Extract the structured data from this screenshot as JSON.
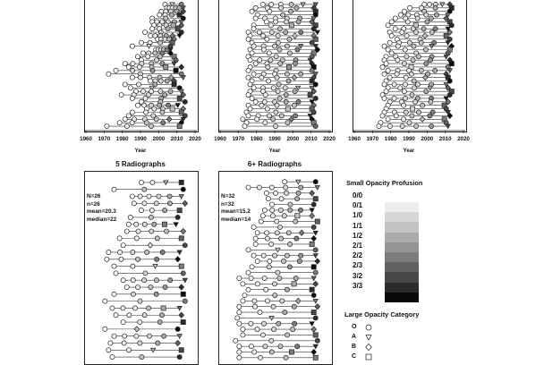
{
  "panels": [
    {
      "id": "p1",
      "title": "",
      "xlabel": "Year",
      "ticks": [
        "1960",
        "1970",
        "1980",
        "1990",
        "2000",
        "2010",
        "2020"
      ],
      "stats": [],
      "rows": 36
    },
    {
      "id": "p2",
      "title": "",
      "xlabel": "Year",
      "ticks": [
        "1960",
        "1970",
        "1980",
        "1990",
        "2000",
        "2010",
        "2020"
      ],
      "stats": [],
      "rows": 36
    },
    {
      "id": "p3",
      "title": "",
      "xlabel": "Year",
      "ticks": [
        "1960",
        "1970",
        "1980",
        "1990",
        "2000",
        "2010",
        "2020"
      ],
      "stats": [],
      "rows": 36
    },
    {
      "id": "p4",
      "title": "5 Radiographs",
      "xlabel": "",
      "ticks": [],
      "stats": [
        "N=26",
        "n=26",
        "mean=20.3",
        "median=22"
      ],
      "rows": 26
    },
    {
      "id": "p5",
      "title": "6+ Radiographs",
      "xlabel": "",
      "ticks": [],
      "stats": [
        "N=32",
        "n=32",
        "mean=15.2",
        "median=14"
      ],
      "rows": 32
    }
  ],
  "legend": {
    "profusion_title": "Small Opacity Profusion",
    "profusion_levels": [
      "0/0",
      "0/1",
      "1/0",
      "1/1",
      "1/2",
      "2/1",
      "2/2",
      "2/3",
      "3/2",
      "3/3"
    ],
    "profusion_colors": [
      "#ededed",
      "#d6d6d6",
      "#c2c2c2",
      "#ababab",
      "#959595",
      "#7c7c7c",
      "#626262",
      "#474747",
      "#2b2b2b",
      "#0a0a0a"
    ],
    "category_title": "Large Opacity Category",
    "categories": [
      {
        "label": "O",
        "shape": "circle"
      },
      {
        "label": "A",
        "shape": "triangle-down"
      },
      {
        "label": "B",
        "shape": "diamond"
      },
      {
        "label": "C",
        "shape": "square"
      }
    ]
  },
  "chart_data": [
    {
      "type": "scatter",
      "panel": "p1",
      "xlabel": "Year",
      "xlim": [
        1960,
        2020
      ],
      "note_rows": 36,
      "series": [
        {
          "start": [
            2003,
            2004,
            2001,
            2000,
            1996,
            1996,
            1997,
            1996,
            1992,
            1995,
            1999,
            1990,
            1985,
            1998,
            1991,
            1988,
            1990,
            1981,
            1983,
            1976,
            1972,
            1985,
            1995,
            1981,
            1984,
            1987,
            1979,
            1985,
            1990,
            1988,
            1993,
            1985,
            1983,
            1981,
            1978,
            1971
          ],
          "end": [
            2012,
            2013,
            2013,
            2011,
            2013,
            2012,
            2012,
            2010,
            2012,
            2011,
            2008,
            2007,
            2006,
            2006,
            2006,
            2008,
            2009,
            2008,
            2012,
            2009,
            2012,
            2013,
            2008,
            2008,
            2011,
            2012,
            2013,
            2011,
            2014,
            2010,
            2013,
            2012,
            2014,
            2013,
            2012,
            2011
          ]
        }
      ]
    },
    {
      "type": "scatter",
      "panel": "p2",
      "xlabel": "Year",
      "xlim": [
        1960,
        2020
      ],
      "note_rows": 36,
      "series": [
        {
          "start": [
            1983,
            1979,
            1977,
            1980,
            1979,
            1985,
            1978,
            1978,
            1975,
            1976,
            1975,
            1977,
            1978,
            1976,
            1977,
            1975,
            1976,
            1979,
            1976,
            1975,
            1978,
            1975,
            1977,
            1976,
            1978,
            1976,
            1975,
            1977,
            1979,
            1975,
            1976,
            1974,
            1975,
            1972,
            1974,
            1973
          ],
          "end": [
            2012,
            2011,
            2012,
            2012,
            2011,
            2010,
            2012,
            2011,
            2013,
            2011,
            2012,
            2010,
            2012,
            2013,
            2011,
            2010,
            2009,
            2010,
            2011,
            2010,
            2012,
            2011,
            2010,
            2012,
            2010,
            2011,
            2009,
            2012,
            2010,
            2011,
            2010,
            2011,
            2009,
            2010,
            2011,
            2012
          ]
        }
      ]
    },
    {
      "type": "scatter",
      "panel": "p3",
      "xlabel": "Year",
      "xlim": [
        1960,
        2020
      ],
      "note_rows": 36,
      "series": [
        {
          "start": [
            1998,
            1990,
            1987,
            1985,
            1982,
            1980,
            1978,
            1982,
            1979,
            1980,
            1983,
            1979,
            1976,
            1978,
            1980,
            1977,
            1976,
            1977,
            1975,
            1978,
            1976,
            1979,
            1977,
            1976,
            1978,
            1977,
            1975,
            1976,
            1979,
            1978,
            1977,
            1976,
            1975,
            1978,
            1974,
            1973
          ],
          "end": [
            2012,
            2013,
            2012,
            2011,
            2010,
            2012,
            2013,
            2011,
            2012,
            2010,
            2012,
            2011,
            2013,
            2012,
            2011,
            2010,
            2012,
            2013,
            2011,
            2012,
            2010,
            2011,
            2012,
            2010,
            2011,
            2013,
            2012,
            2010,
            2011,
            2009,
            2010,
            2011,
            2012,
            2009,
            2010,
            2011
          ]
        }
      ]
    },
    {
      "type": "scatter",
      "panel": "p4",
      "xlim": [
        1960,
        2020
      ],
      "note_rows": 26,
      "series": [
        {
          "start": [
            1990,
            1975,
            1985,
            1986,
            1990,
            1984,
            1983,
            1982,
            1978,
            1980,
            1972,
            1971,
            1975,
            1976,
            1980,
            1982,
            1975,
            1970,
            1974,
            1976,
            1980,
            1970,
            1975,
            1973,
            1972,
            1974
          ],
          "end": [
            2012,
            2013,
            2012,
            2014,
            2011,
            2010,
            2009,
            2013,
            2012,
            2014,
            2011,
            2010,
            2012,
            2013,
            2014,
            2012,
            2013,
            2014,
            2011,
            2012,
            2013,
            2010,
            2011,
            2010,
            2012,
            2011
          ]
        }
      ]
    },
    {
      "type": "scatter",
      "panel": "p5",
      "xlim": [
        1960,
        2020
      ],
      "note_rows": 32,
      "series": [
        {
          "start": [
            1995,
            1975,
            1985,
            1986,
            1988,
            1984,
            1983,
            1982,
            1978,
            1980,
            1979,
            1979,
            1975,
            1978,
            1980,
            1977,
            1975,
            1970,
            1972,
            1975,
            1973,
            1972,
            1970,
            1970,
            1969,
            1970,
            1972,
            1972,
            1968,
            1970,
            1970,
            1970
          ],
          "end": [
            2012,
            2013,
            2010,
            2012,
            2011,
            2010,
            2010,
            2013,
            2011,
            2012,
            2011,
            2010,
            2012,
            2012,
            2013,
            2011,
            2012,
            2011,
            2012,
            2010,
            2011,
            2012,
            2013,
            2011,
            2012,
            2010,
            2011,
            2012,
            2013,
            2012,
            2011,
            2012
          ]
        }
      ]
    }
  ]
}
